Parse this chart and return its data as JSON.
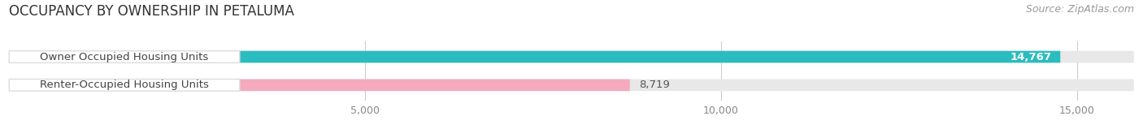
{
  "title": "OCCUPANCY BY OWNERSHIP IN PETALUMA",
  "source": "Source: ZipAtlas.com",
  "categories": [
    "Owner Occupied Housing Units",
    "Renter-Occupied Housing Units"
  ],
  "values": [
    14767,
    8719
  ],
  "bar_colors": [
    "#2BBCBF",
    "#F5AABF"
  ],
  "bar_bg_color": "#e8e8e8",
  "value_inside_bar": [
    true,
    false
  ],
  "value_text_color_inside": "#ffffff",
  "value_text_color_outside": "#555555",
  "label_box_color": "#ffffff",
  "label_box_edge_color": "#dddddd",
  "label_text_color": "#444444",
  "xlim_max": 15800,
  "xticks": [
    5000,
    10000,
    15000
  ],
  "xtick_labels": [
    "5,000",
    "10,000",
    "15,000"
  ],
  "title_fontsize": 12,
  "source_fontsize": 9,
  "label_fontsize": 9.5,
  "value_fontsize": 9.5,
  "figsize": [
    14.06,
    1.59
  ],
  "dpi": 100,
  "bg_color": "#ffffff"
}
